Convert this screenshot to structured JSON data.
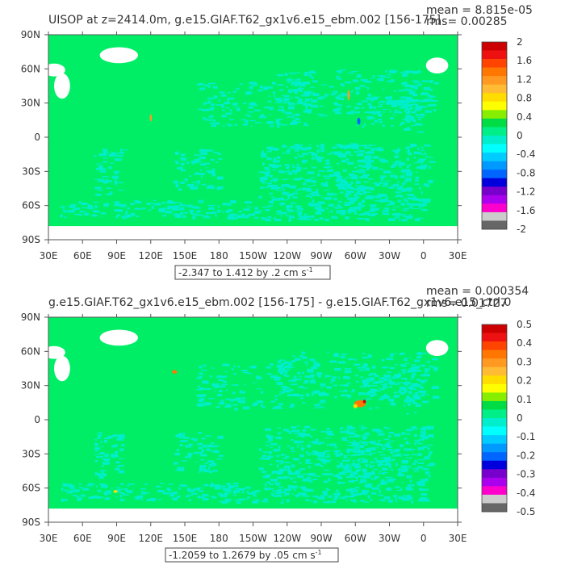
{
  "panels": [
    {
      "title": "UISOP at z=2414.0m, g.e15.GIAF.T62_gx1v6.e15_ebm.002 [156-175]",
      "mean_label": "mean = 8.815e-05",
      "rms_label": "rms= 0.00285",
      "range_label": "-2.347 to 1.412 by .2 cm s",
      "unit_exponent": "-1"
    },
    {
      "title": "g.e15.GIAF.T62_gx1v6.e15_ebm.002 [156-175] - g.e15.GIAF.T62_gx1v6.e15_ctrl.0",
      "mean_label": "mean = 0.000354",
      "rms_label": "rms= 0.01727",
      "range_label": "-1.2059 to 1.2679 by .05 cm s",
      "unit_exponent": "-1"
    }
  ],
  "colors": {
    "ocean_main": "#00ee66",
    "ocean_low": "#00eecc",
    "land": "#ffffff",
    "missing": "#ffffff",
    "frame": "#555555"
  },
  "chart_data": [
    {
      "type": "heatmap",
      "title": "UISOP at z=2414.0m, g.e15.GIAF.T62_gx1v6.e15_ebm.002 [156-175]",
      "x_tick_labels": [
        "30E",
        "60E",
        "90E",
        "120E",
        "150E",
        "180",
        "150W",
        "120W",
        "90W",
        "60W",
        "30W",
        "0",
        "30E"
      ],
      "y_tick_labels": [
        "90N",
        "60N",
        "30N",
        "0",
        "30S",
        "60S",
        "90S"
      ],
      "x_range": [
        30,
        390
      ],
      "y_range": [
        -90,
        90
      ],
      "contour_min": -2.347,
      "contour_max": 1.412,
      "contour_interval": 0.2,
      "units": "cm s-1",
      "mean": 8.815e-05,
      "rms": 0.00285,
      "colorbar_labels": [
        "2",
        "1.6",
        "1.2",
        "0.8",
        "0.4",
        "0",
        "-0.4",
        "-0.8",
        "-1.2",
        "-1.6",
        "-2"
      ],
      "colorbar_colors": [
        "#cc0000",
        "#ee1111",
        "#ff4400",
        "#ff7700",
        "#ff9922",
        "#ffbb33",
        "#ffdd00",
        "#ffff00",
        "#88ee00",
        "#00dd44",
        "#00ee88",
        "#00eecc",
        "#00ffff",
        "#00ccff",
        "#0099ff",
        "#0066ff",
        "#0000dd",
        "#7700cc",
        "#aa00ee",
        "#ff00cc",
        "#cccccc",
        "#666666"
      ]
    },
    {
      "type": "heatmap",
      "title": "g.e15.GIAF.T62_gx1v6.e15_ebm.002 [156-175] - g.e15.GIAF.T62_gx1v6.e15_ctrl.0",
      "x_tick_labels": [
        "30E",
        "60E",
        "90E",
        "120E",
        "150E",
        "180",
        "150W",
        "120W",
        "90W",
        "60W",
        "30W",
        "0",
        "30E"
      ],
      "y_tick_labels": [
        "90N",
        "60N",
        "30N",
        "0",
        "30S",
        "60S",
        "90S"
      ],
      "x_range": [
        30,
        390
      ],
      "y_range": [
        -90,
        90
      ],
      "contour_min": -1.2059,
      "contour_max": 1.2679,
      "contour_interval": 0.05,
      "units": "cm s-1",
      "mean": 0.000354,
      "rms": 0.01727,
      "colorbar_labels": [
        "0.5",
        "0.4",
        "0.3",
        "0.2",
        "0.1",
        "0",
        "-0.1",
        "-0.2",
        "-0.3",
        "-0.4",
        "-0.5"
      ],
      "colorbar_colors": [
        "#cc0000",
        "#ee1111",
        "#ff4400",
        "#ff7700",
        "#ff9922",
        "#ffbb33",
        "#ffdd00",
        "#ffff00",
        "#88ee00",
        "#00dd44",
        "#00ee88",
        "#00eecc",
        "#00ffff",
        "#00ccff",
        "#0099ff",
        "#0066ff",
        "#0000dd",
        "#7700cc",
        "#aa00ee",
        "#ff00cc",
        "#cccccc",
        "#666666"
      ]
    }
  ]
}
